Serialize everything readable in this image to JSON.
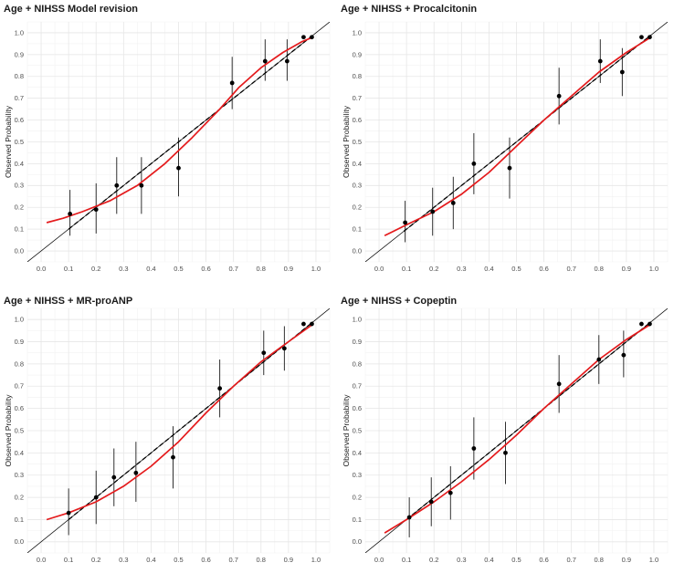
{
  "chart_data": [
    {
      "type": "scatter",
      "title": "Age + NIHSS Model revision",
      "ylabel": "Observed Probability",
      "xlim": [
        -0.05,
        1.05
      ],
      "ylim": [
        -0.05,
        1.05
      ],
      "x_ticks": [
        "0.0",
        "0.1",
        "0.2",
        "0.3",
        "0.4",
        "0.5",
        "0.6",
        "0.7",
        "0.8",
        "0.9",
        "1.0"
      ],
      "y_ticks": [
        "0.0",
        "0.1",
        "0.2",
        "0.3",
        "0.4",
        "0.5",
        "0.6",
        "0.7",
        "0.8",
        "0.9",
        "1.0"
      ],
      "grid": true,
      "colors": {
        "points": "#000000",
        "smooth": "#e41a1c",
        "linear": "#000000",
        "reference": "#000000"
      },
      "points": [
        {
          "x": 0.105,
          "y": 0.17,
          "lo": 0.07,
          "hi": 0.28
        },
        {
          "x": 0.2,
          "y": 0.19,
          "lo": 0.08,
          "hi": 0.31
        },
        {
          "x": 0.275,
          "y": 0.3,
          "lo": 0.17,
          "hi": 0.43
        },
        {
          "x": 0.365,
          "y": 0.3,
          "lo": 0.17,
          "hi": 0.43
        },
        {
          "x": 0.5,
          "y": 0.38,
          "lo": 0.25,
          "hi": 0.52
        },
        {
          "x": 0.695,
          "y": 0.77,
          "lo": 0.65,
          "hi": 0.89
        },
        {
          "x": 0.815,
          "y": 0.87,
          "lo": 0.78,
          "hi": 0.97
        },
        {
          "x": 0.895,
          "y": 0.87,
          "lo": 0.78,
          "hi": 0.97
        },
        {
          "x": 0.955,
          "y": 0.98
        },
        {
          "x": 0.985,
          "y": 0.98
        }
      ],
      "smooth_curve": [
        [
          0.02,
          0.13
        ],
        [
          0.08,
          0.15
        ],
        [
          0.15,
          0.18
        ],
        [
          0.25,
          0.23
        ],
        [
          0.35,
          0.3
        ],
        [
          0.45,
          0.4
        ],
        [
          0.55,
          0.52
        ],
        [
          0.65,
          0.65
        ],
        [
          0.72,
          0.75
        ],
        [
          0.8,
          0.84
        ],
        [
          0.88,
          0.91
        ],
        [
          0.95,
          0.96
        ],
        [
          0.99,
          0.98
        ]
      ],
      "linear_fit": [
        [
          0.1,
          0.1
        ],
        [
          0.99,
          0.99
        ]
      ]
    },
    {
      "type": "scatter",
      "title": "Age + NIHSS + Procalcitonin",
      "ylabel": "Observed Probability",
      "xlim": [
        -0.05,
        1.05
      ],
      "ylim": [
        -0.05,
        1.05
      ],
      "x_ticks": [
        "0.0",
        "0.1",
        "0.2",
        "0.3",
        "0.4",
        "0.5",
        "0.6",
        "0.7",
        "0.8",
        "0.9",
        "1.0"
      ],
      "y_ticks": [
        "0.0",
        "0.1",
        "0.2",
        "0.3",
        "0.4",
        "0.5",
        "0.6",
        "0.7",
        "0.8",
        "0.9",
        "1.0"
      ],
      "grid": true,
      "colors": {
        "points": "#000000",
        "smooth": "#e41a1c",
        "linear": "#000000",
        "reference": "#000000"
      },
      "points": [
        {
          "x": 0.095,
          "y": 0.13,
          "lo": 0.04,
          "hi": 0.23
        },
        {
          "x": 0.195,
          "y": 0.18,
          "lo": 0.07,
          "hi": 0.29
        },
        {
          "x": 0.27,
          "y": 0.22,
          "lo": 0.1,
          "hi": 0.34
        },
        {
          "x": 0.345,
          "y": 0.4,
          "lo": 0.26,
          "hi": 0.54
        },
        {
          "x": 0.475,
          "y": 0.38,
          "lo": 0.24,
          "hi": 0.52
        },
        {
          "x": 0.655,
          "y": 0.71,
          "lo": 0.58,
          "hi": 0.84
        },
        {
          "x": 0.805,
          "y": 0.87,
          "lo": 0.77,
          "hi": 0.97
        },
        {
          "x": 0.885,
          "y": 0.82,
          "lo": 0.71,
          "hi": 0.93
        },
        {
          "x": 0.955,
          "y": 0.98
        },
        {
          "x": 0.985,
          "y": 0.98
        }
      ],
      "smooth_curve": [
        [
          0.02,
          0.07
        ],
        [
          0.1,
          0.12
        ],
        [
          0.2,
          0.18
        ],
        [
          0.3,
          0.26
        ],
        [
          0.4,
          0.36
        ],
        [
          0.5,
          0.48
        ],
        [
          0.6,
          0.6
        ],
        [
          0.7,
          0.71
        ],
        [
          0.8,
          0.82
        ],
        [
          0.9,
          0.91
        ],
        [
          0.99,
          0.98
        ]
      ],
      "linear_fit": [
        [
          0.09,
          0.09
        ],
        [
          0.99,
          0.99
        ]
      ]
    },
    {
      "type": "scatter",
      "title": "Age + NIHSS + MR-proANP",
      "ylabel": "Observed Probability",
      "xlim": [
        -0.05,
        1.05
      ],
      "ylim": [
        -0.05,
        1.05
      ],
      "x_ticks": [
        "0.0",
        "0.1",
        "0.2",
        "0.3",
        "0.4",
        "0.5",
        "0.6",
        "0.7",
        "0.8",
        "0.9",
        "1.0"
      ],
      "y_ticks": [
        "0.0",
        "0.1",
        "0.2",
        "0.3",
        "0.4",
        "0.5",
        "0.6",
        "0.7",
        "0.8",
        "0.9",
        "1.0"
      ],
      "grid": true,
      "colors": {
        "points": "#000000",
        "smooth": "#e41a1c",
        "linear": "#000000",
        "reference": "#000000"
      },
      "points": [
        {
          "x": 0.1,
          "y": 0.13,
          "lo": 0.03,
          "hi": 0.24
        },
        {
          "x": 0.2,
          "y": 0.2,
          "lo": 0.08,
          "hi": 0.32
        },
        {
          "x": 0.265,
          "y": 0.29,
          "lo": 0.16,
          "hi": 0.42
        },
        {
          "x": 0.345,
          "y": 0.31,
          "lo": 0.18,
          "hi": 0.45
        },
        {
          "x": 0.48,
          "y": 0.38,
          "lo": 0.24,
          "hi": 0.52
        },
        {
          "x": 0.65,
          "y": 0.69,
          "lo": 0.56,
          "hi": 0.82
        },
        {
          "x": 0.81,
          "y": 0.85,
          "lo": 0.75,
          "hi": 0.95
        },
        {
          "x": 0.885,
          "y": 0.87,
          "lo": 0.77,
          "hi": 0.97
        },
        {
          "x": 0.955,
          "y": 0.98
        },
        {
          "x": 0.985,
          "y": 0.98
        }
      ],
      "smooth_curve": [
        [
          0.02,
          0.1
        ],
        [
          0.1,
          0.13
        ],
        [
          0.2,
          0.18
        ],
        [
          0.3,
          0.25
        ],
        [
          0.4,
          0.34
        ],
        [
          0.5,
          0.45
        ],
        [
          0.6,
          0.58
        ],
        [
          0.7,
          0.7
        ],
        [
          0.8,
          0.81
        ],
        [
          0.9,
          0.9
        ],
        [
          0.99,
          0.98
        ]
      ],
      "linear_fit": [
        [
          0.1,
          0.1
        ],
        [
          0.99,
          0.99
        ]
      ]
    },
    {
      "type": "scatter",
      "title": "Age + NIHSS + Copeptin",
      "ylabel": "Observed Probability",
      "xlim": [
        -0.05,
        1.05
      ],
      "ylim": [
        -0.05,
        1.05
      ],
      "x_ticks": [
        "0.0",
        "0.1",
        "0.2",
        "0.3",
        "0.4",
        "0.5",
        "0.6",
        "0.7",
        "0.8",
        "0.9",
        "1.0"
      ],
      "y_ticks": [
        "0.0",
        "0.1",
        "0.2",
        "0.3",
        "0.4",
        "0.5",
        "0.6",
        "0.7",
        "0.8",
        "0.9",
        "1.0"
      ],
      "grid": true,
      "colors": {
        "points": "#000000",
        "smooth": "#e41a1c",
        "linear": "#000000",
        "reference": "#000000"
      },
      "points": [
        {
          "x": 0.11,
          "y": 0.11,
          "lo": 0.02,
          "hi": 0.2
        },
        {
          "x": 0.19,
          "y": 0.18,
          "lo": 0.07,
          "hi": 0.29
        },
        {
          "x": 0.26,
          "y": 0.22,
          "lo": 0.1,
          "hi": 0.34
        },
        {
          "x": 0.345,
          "y": 0.42,
          "lo": 0.28,
          "hi": 0.56
        },
        {
          "x": 0.46,
          "y": 0.4,
          "lo": 0.26,
          "hi": 0.54
        },
        {
          "x": 0.655,
          "y": 0.71,
          "lo": 0.58,
          "hi": 0.84
        },
        {
          "x": 0.8,
          "y": 0.82,
          "lo": 0.71,
          "hi": 0.93
        },
        {
          "x": 0.89,
          "y": 0.84,
          "lo": 0.74,
          "hi": 0.95
        },
        {
          "x": 0.955,
          "y": 0.98
        },
        {
          "x": 0.985,
          "y": 0.98
        }
      ],
      "smooth_curve": [
        [
          0.02,
          0.04
        ],
        [
          0.1,
          0.1
        ],
        [
          0.2,
          0.18
        ],
        [
          0.3,
          0.27
        ],
        [
          0.4,
          0.37
        ],
        [
          0.5,
          0.48
        ],
        [
          0.6,
          0.6
        ],
        [
          0.7,
          0.71
        ],
        [
          0.8,
          0.82
        ],
        [
          0.9,
          0.91
        ],
        [
          0.99,
          0.98
        ]
      ],
      "linear_fit": [
        [
          0.1,
          0.1
        ],
        [
          0.99,
          0.99
        ]
      ]
    }
  ]
}
